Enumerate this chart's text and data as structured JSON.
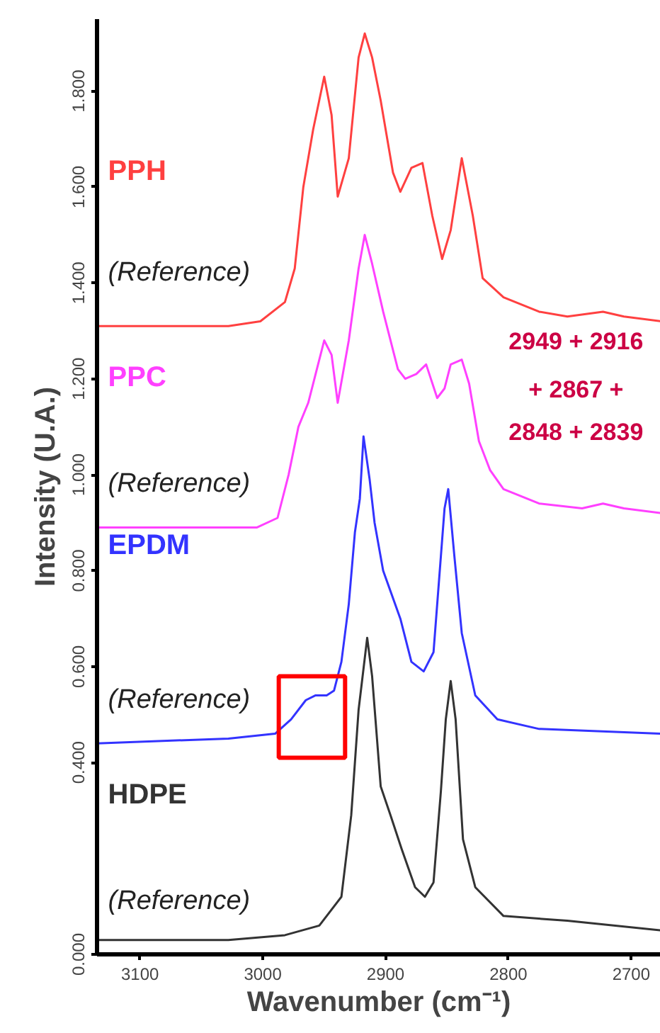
{
  "chart_data": {
    "type": "line",
    "xlabel": "Wavenumber (cm⁻¹)",
    "ylabel": "Intensity (U.A.)",
    "xlim": [
      3135,
      2676
    ],
    "ylim": [
      0,
      1.95
    ],
    "xticks": [
      3100,
      3000,
      2900,
      2800,
      2700
    ],
    "yticks": [
      {
        "value": 0,
        "label": "0.000"
      },
      {
        "value": 0.4,
        "label": "0.400"
      },
      {
        "value": 0.6,
        "label": "0.600"
      },
      {
        "value": 0.8,
        "label": "0.800"
      },
      {
        "value": 1.0,
        "label": "1.000"
      },
      {
        "value": 1.2,
        "label": "1.200"
      },
      {
        "value": 1.4,
        "label": "1.400"
      },
      {
        "value": 1.6,
        "label": "1.600"
      },
      {
        "value": 1.8,
        "label": "1.800"
      }
    ],
    "series": [
      {
        "name": "PPH",
        "color": "#ff4040",
        "x": [
          3135,
          3028,
          3002,
          2982,
          2974,
          2967,
          2959,
          2950,
          2944,
          2939,
          2930,
          2922,
          2917,
          2911,
          2904,
          2894,
          2888,
          2879,
          2870,
          2862,
          2854,
          2847,
          2838,
          2829,
          2821,
          2804,
          2775,
          2752,
          2723,
          2706,
          2676
        ],
        "values": [
          1.31,
          1.31,
          1.32,
          1.36,
          1.43,
          1.6,
          1.72,
          1.83,
          1.75,
          1.58,
          1.66,
          1.87,
          1.92,
          1.87,
          1.78,
          1.63,
          1.59,
          1.64,
          1.65,
          1.54,
          1.45,
          1.51,
          1.66,
          1.54,
          1.41,
          1.37,
          1.34,
          1.33,
          1.34,
          1.33,
          1.32
        ]
      },
      {
        "name": "PPC",
        "color": "#ff40ff",
        "x": [
          3135,
          3005,
          2988,
          2979,
          2971,
          2963,
          2950,
          2944,
          2939,
          2930,
          2922,
          2917,
          2911,
          2902,
          2890,
          2884,
          2875,
          2867,
          2858,
          2852,
          2847,
          2838,
          2832,
          2824,
          2815,
          2804,
          2775,
          2740,
          2723,
          2706,
          2676
        ],
        "values": [
          0.89,
          0.89,
          0.91,
          1.0,
          1.1,
          1.15,
          1.28,
          1.25,
          1.15,
          1.28,
          1.43,
          1.5,
          1.44,
          1.34,
          1.22,
          1.2,
          1.21,
          1.23,
          1.16,
          1.18,
          1.23,
          1.24,
          1.19,
          1.07,
          1.01,
          0.97,
          0.94,
          0.93,
          0.94,
          0.93,
          0.92
        ]
      },
      {
        "name": "EPDM",
        "color": "#3333ff",
        "x": [
          3135,
          3028,
          2990,
          2977,
          2965,
          2957,
          2948,
          2942,
          2936,
          2930,
          2925,
          2921,
          2918,
          2913,
          2909,
          2902,
          2888,
          2879,
          2869,
          2861,
          2855,
          2852,
          2849,
          2844,
          2838,
          2827,
          2809,
          2775,
          2676
        ],
        "values": [
          0.44,
          0.45,
          0.46,
          0.49,
          0.53,
          0.54,
          0.54,
          0.55,
          0.61,
          0.73,
          0.88,
          0.95,
          1.08,
          0.99,
          0.9,
          0.8,
          0.7,
          0.61,
          0.59,
          0.63,
          0.83,
          0.93,
          0.97,
          0.83,
          0.67,
          0.54,
          0.49,
          0.47,
          0.46
        ]
      },
      {
        "name": "HDPE",
        "color": "#333333",
        "x": [
          3135,
          3028,
          2982,
          2954,
          2936,
          2928,
          2922,
          2915,
          2911,
          2904,
          2896,
          2887,
          2876,
          2868,
          2861,
          2855,
          2851,
          2847,
          2843,
          2837,
          2827,
          2804,
          2752,
          2676
        ],
        "values": [
          0.03,
          0.03,
          0.04,
          0.06,
          0.12,
          0.29,
          0.51,
          0.66,
          0.58,
          0.35,
          0.29,
          0.22,
          0.14,
          0.12,
          0.15,
          0.34,
          0.49,
          0.57,
          0.49,
          0.24,
          0.14,
          0.08,
          0.07,
          0.05
        ]
      }
    ],
    "annotations": [
      "(Reference)",
      "(Reference)",
      "(Reference)",
      "(Reference)",
      "2949 + 2916",
      "+ 2867 +",
      "2848 + 2839"
    ]
  }
}
